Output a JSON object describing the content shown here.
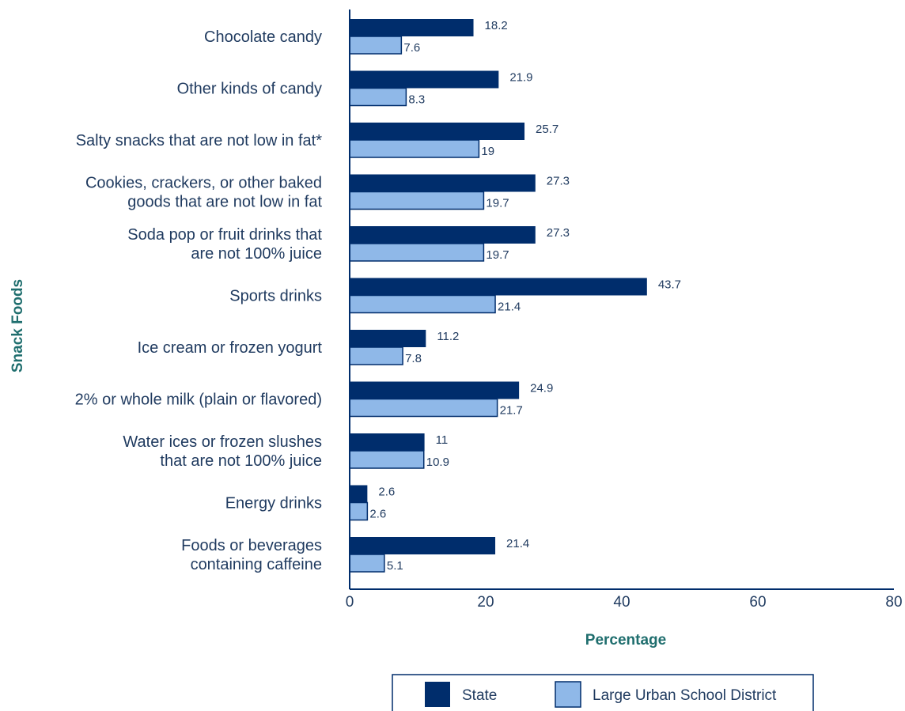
{
  "chart_data": {
    "type": "bar",
    "orientation": "horizontal",
    "xlabel": "Percentage",
    "ylabel": "Snack Foods",
    "xlim": [
      0,
      80
    ],
    "xticks": [
      "0",
      "20",
      "40",
      "60",
      "80"
    ],
    "grid": false,
    "legend_position": "bottom",
    "categories": [
      [
        "Chocolate candy"
      ],
      [
        "Other kinds of candy"
      ],
      [
        "Salty snacks that are not low in fat*"
      ],
      [
        "Cookies, crackers, or other baked",
        "goods that are not low in fat"
      ],
      [
        "Soda pop or fruit drinks that",
        "are not 100% juice"
      ],
      [
        "Sports drinks"
      ],
      [
        "Ice cream or frozen yogurt"
      ],
      [
        "2% or whole milk (plain or flavored)"
      ],
      [
        "Water ices or frozen slushes",
        "that are not 100% juice"
      ],
      [
        "Energy drinks"
      ],
      [
        "Foods or beverages",
        "containing caffeine"
      ]
    ],
    "series": [
      {
        "name": "State",
        "color": "#002d6c",
        "values": [
          18.2,
          21.9,
          25.7,
          27.3,
          27.3,
          43.7,
          11.2,
          24.9,
          11,
          2.6,
          21.4
        ],
        "labels": [
          "18.2",
          "21.9",
          "25.7",
          "27.3",
          "27.3",
          "43.7",
          "11.2",
          "24.9",
          "11",
          "2.6",
          "21.4"
        ]
      },
      {
        "name": "Large Urban School District",
        "color": "#8fb8e8",
        "values": [
          7.6,
          8.3,
          19,
          19.7,
          19.7,
          21.4,
          7.8,
          21.7,
          10.9,
          2.6,
          5.1
        ],
        "labels": [
          "7.6",
          "8.3",
          "19",
          "19.7",
          "19.7",
          "21.4",
          "7.8",
          "21.7",
          "10.9",
          "2.6",
          "5.1"
        ]
      }
    ]
  }
}
